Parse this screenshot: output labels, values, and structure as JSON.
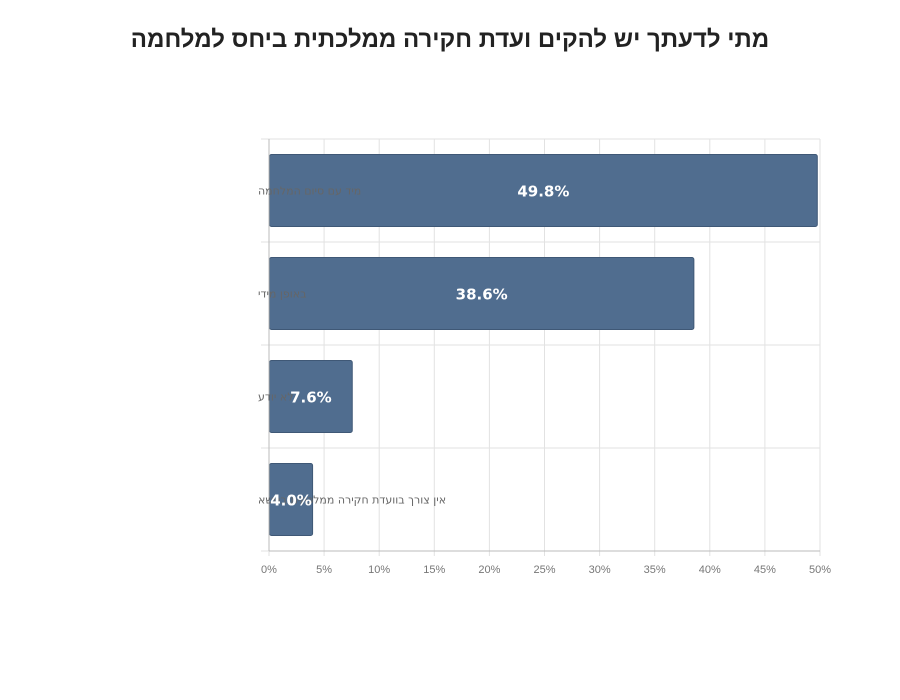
{
  "chart_data": {
    "type": "bar",
    "orientation": "horizontal",
    "title": "מתי לדעתך יש להקים ועדת חקירה ממלכתית ביחס למלחמה",
    "xlabel": "",
    "ylabel": "",
    "categories": [
      "מיד עם סיום המלחמה",
      "באופן מידי",
      "לא יודע",
      "אין צורך בוועדת חקירה ממלכתית בנושא"
    ],
    "values": [
      49.8,
      38.6,
      7.6,
      4.0
    ],
    "data_labels": [
      "49.8%",
      "38.6%",
      "7.6%",
      "4.0%"
    ],
    "xlim": [
      0,
      50
    ],
    "x_ticks": [
      "0%",
      "5%",
      "10%",
      "15%",
      "20%",
      "25%",
      "30%",
      "35%",
      "40%",
      "45%",
      "50%"
    ],
    "grid": true,
    "legend": "none",
    "colors": {
      "bar": "#506d8f",
      "bar_edge": "#3f5876",
      "grid": "#e2e2e2",
      "axis": "#bbbbbb"
    }
  }
}
